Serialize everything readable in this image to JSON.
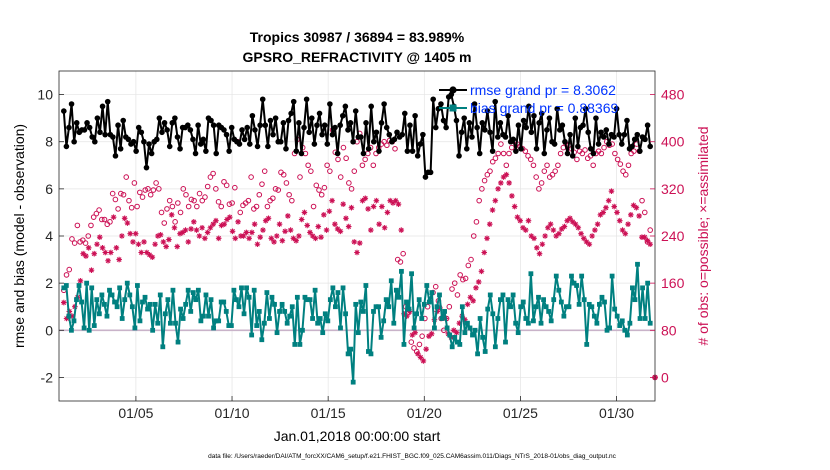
{
  "chart_data": {
    "type": "line",
    "title": "Tropics 30987 / 36894 = 83.989%",
    "subtitle": "GPSRO_REFRACTIVITY @ 1405 m",
    "xlabel": "Jan.01,2018 00:00:00 start",
    "ylabel_left": "rmse and bias (model - observation)",
    "ylabel_right": "# of obs: o=possible; ×=assimilated",
    "footer": "data file: /Users/raeder/DAI/ATM_forcXX/CAM6_setup/f.e21.FHIST_BGC.f09_025.CAM6assim.011/Diags_NTrS_2018-01/obs_diag_output.nc",
    "x_range": [
      1,
      32
    ],
    "y_left_range": [
      -3.0,
      11.0
    ],
    "y_right_range": [
      -40,
      520
    ],
    "x_ticks": [
      {
        "value": 5,
        "label": "01/05"
      },
      {
        "value": 10,
        "label": "01/10"
      },
      {
        "value": 15,
        "label": "01/15"
      },
      {
        "value": 20,
        "label": "01/20"
      },
      {
        "value": 25,
        "label": "01/25"
      },
      {
        "value": 30,
        "label": "01/30"
      }
    ],
    "y_left_ticks": [
      -2,
      0,
      2,
      4,
      6,
      8,
      10
    ],
    "y_right_ticks": [
      0,
      80,
      160,
      240,
      320,
      400,
      480
    ],
    "legend": [
      {
        "name": "rmse grand pr = 8.3062",
        "color": "#000000"
      },
      {
        "name": "bias grand pr = 0.88369",
        "color": "#008080"
      }
    ],
    "legend_placement": "top-right",
    "colors": {
      "rmse": "#000000",
      "bias": "#008080",
      "counts": "#cc1155",
      "zero_line": "#c9b3c9",
      "legend_text": "#0033ff",
      "right_axis": "#cc1155"
    },
    "series": [
      {
        "name": "rmse",
        "values": [
          9.3,
          7.8,
          8.6,
          9.6,
          8.0,
          8.8,
          8.4,
          8.5,
          8.5,
          8.8,
          8.6,
          8.2,
          8.0,
          9.0,
          8.4,
          9.5,
          8.3,
          9.7,
          8.3,
          8.2,
          7.4,
          8.7,
          7.7,
          8.9,
          8.2,
          8.1,
          7.9,
          8.0,
          7.6,
          8.6,
          8.4,
          8.0,
          6.9,
          7.9,
          7.5,
          8.0,
          8.1,
          9.0,
          8.4,
          8.8,
          8.5,
          7.8,
          8.8,
          9.0,
          8.2,
          7.7,
          8.6,
          8.6,
          8.7,
          8.5,
          8.1,
          7.5,
          8.7,
          7.9,
          8.1,
          7.6,
          9.0,
          8.9,
          8.7,
          7.5,
          8.7,
          8.6,
          8.5,
          8.3,
          7.6,
          8.6,
          8.1,
          8.0,
          7.9,
          8.5,
          8.1,
          8.6,
          7.9,
          9.1,
          8.5,
          7.8,
          8.7,
          9.8,
          8.7,
          7.8,
          8.9,
          8.3,
          9.0,
          8.0,
          8.0,
          8.8,
          7.7,
          8.9,
          9.2,
          9.7,
          7.6,
          8.8,
          7.5,
          8.6,
          9.8,
          8.4,
          9.0,
          7.9,
          8.7,
          9.2,
          8.3,
          8.7,
          7.9,
          9.6,
          8.3,
          8.6,
          7.5,
          8.7,
          9.1,
          9.5,
          8.5,
          8.8,
          8.0,
          9.3,
          8.2,
          8.2,
          7.5,
          8.8,
          7.7,
          9.5,
          8.0,
          8.4,
          7.6,
          8.8,
          9.6,
          8.6,
          8.3,
          8.0,
          8.1,
          8.4,
          8.2,
          8.3,
          9.2,
          7.6,
          8.7,
          7.6,
          9.1,
          7.4,
          7.9,
          8.3,
          6.5,
          6.7,
          6.7,
          9.8,
          8.6,
          9.4,
          9.6,
          8.9,
          8.6,
          9.9,
          10.0,
          9.5,
          8.9,
          7.4,
          8.4,
          9.0,
          7.7,
          8.8,
          8.2,
          9.6,
          8.6,
          7.5,
          8.8,
          8.5,
          9.3,
          8.4,
          7.6,
          9.7,
          8.2,
          8.8,
          8.3,
          8.2,
          9.1,
          8.0,
          8.1,
          7.6,
          8.7,
          7.7,
          8.9,
          8.6,
          9.5,
          8.4,
          9.1,
          7.7,
          8.8,
          9.2,
          7.5,
          8.5,
          9.0,
          8.0,
          7.9,
          9.4,
          8.5,
          8.7,
          8.0,
          7.5,
          8.3,
          7.4,
          9.0,
          7.8,
          8.6,
          8.7,
          9.4,
          8.4,
          7.7,
          7.5,
          9.0,
          7.9,
          8.4,
          8.2,
          8.5,
          7.9,
          8.3,
          8.2,
          9.4,
          8.3,
          7.9,
          8.3,
          8.9,
          7.7,
          7.8,
          8.1,
          8.3,
          7.6,
          8.2,
          8.1,
          8.7,
          7.8
        ]
      },
      {
        "name": "bias",
        "values": [
          1.8,
          1.9,
          0.6,
          0.0,
          0.4,
          1.3,
          1.9,
          1.2,
          0.1,
          2.0,
          0.0,
          1.8,
          0.2,
          1.3,
          0.7,
          1.5,
          1.1,
          0.6,
          1.7,
          1.5,
          1.2,
          1.0,
          1.8,
          0.5,
          1.3,
          2.0,
          1.5,
          1.0,
          0.1,
          1.9,
          0.4,
          1.2,
          1.4,
          0.9,
          1.1,
          0.0,
          1.1,
          0.3,
          1.5,
          -0.7,
          0.7,
          1.3,
          0.3,
          1.7,
          0.3,
          -0.5,
          0.9,
          0.5,
          1.1,
          1.7,
          0.8,
          1.6,
          1.3,
          1.7,
          0.4,
          0.6,
          1.5,
          0.6,
          1.3,
          0.1,
          0.4,
          0.4,
          1.2,
          1.2,
          0.8,
          0.2,
          0.2,
          1.7,
          1.3,
          1.0,
          1.8,
          0.7,
          1.8,
          1.4,
          -0.2,
          1.7,
          0.2,
          0.8,
          -0.4,
          0.3,
          1.6,
          0.5,
          1.4,
          1.1,
          -0.1,
          0.8,
          1.1,
          0.8,
          0.3,
          0.6,
          1.0,
          -0.6,
          1.4,
          -0.6,
          0.0,
          1.4,
          1.3,
          1.3,
          0.5,
          1.7,
          0.3,
          0.5,
          -0.1,
          0.7,
          0.4,
          1.3,
          1.8,
          1.0,
          1.6,
          0.1,
          1.8,
          0.7,
          -1.0,
          -0.8,
          -2.2,
          1.1,
          -0.1,
          1.2,
          0.8,
          1.9,
          -0.9,
          -1.0,
          0.8,
          1.0,
          1.0,
          -0.3,
          0.4,
          1.3,
          1.0,
          2.1,
          0.3,
          1.7,
          1.4,
          2.5,
          -0.6,
          1.2,
          0.9,
          2.4,
          0.1,
          0.7,
          1.3,
          0.5,
          1.1,
          1.9,
          1.2,
          1.6,
          0.1,
          1.0,
          1.5,
          0.5,
          0.8,
          0.1,
          -0.2,
          -0.7,
          -0.3,
          -0.5,
          -0.6,
          1.0,
          -0.1,
          0.3,
          0.1,
          -0.2,
          0.0,
          -1.0,
          0.5,
          -0.3,
          -0.9,
          0.9,
          1.5,
          0.7,
          -0.7,
          0.5,
          1.3,
          1.5,
          -0.5,
          1.3,
          1.0,
          1.5,
          0.3,
          -0.1,
          1.0,
          1.2,
          0.5,
          0.3,
          2.4,
          0.4,
          1.0,
          1.4,
          0.3,
          1.3,
          1.0,
          0.8,
          0.4,
          1.3,
          2.3,
          1.7,
          1.2,
          0.6,
          1.0,
          1.0,
          2.3,
          2.0,
          1.9,
          1.1,
          2.3,
          1.3,
          -0.6,
          1.1,
          1.0,
          0.6,
          0.3,
          1.1,
          1.4,
          1.2,
          0.0,
          0.1,
          2.3,
          0.9,
          0.6,
          0.2,
          0.4,
          0.0,
          -0.2,
          0.3,
          1.8,
          1.3,
          2.8,
          0.5,
          1.8,
          0.5,
          2.0,
          0.3
        ]
      },
      {
        "name": "possible",
        "values": [
          148,
          174,
          183,
          235,
          228,
          258,
          230,
          233,
          228,
          240,
          258,
          272,
          278,
          284,
          268,
          268,
          260,
          264,
          312,
          302,
          286,
          312,
          310,
          340,
          300,
          288,
          330,
          290,
          314,
          306,
          318,
          320,
          310,
          318,
          330,
          320,
          280,
          262,
          286,
          300,
          290,
          264,
          296,
          280,
          320,
          310,
          290,
          302,
          300,
          290,
          312,
          300,
          306,
          324,
          340,
          346,
          320,
          298,
          290,
          332,
          326,
          294,
          296,
          322,
          400,
          280,
          292,
          296,
          300,
          340,
          286,
          290,
          310,
          328,
          350,
          290,
          300,
          304,
          320,
          318,
          348,
          344,
          330,
          310,
          300,
          380,
          404,
          340,
          390,
          380,
          360,
          350,
          290,
          326,
          318,
          310,
          322,
          360,
          350,
          420,
          382,
          370,
          340,
          390,
          372,
          330,
          320,
          350,
          400,
          414,
          360,
          370,
          380,
          390,
          360,
          380,
          390,
          396,
          400,
          394,
          402,
          400,
          388,
          200,
          196,
          210,
          120,
          110,
          60,
          50,
          44,
          56,
          70,
          100,
          120,
          130,
          144,
          154,
          130,
          100,
          80,
          100,
          120,
          150,
          160,
          140,
          174,
          166,
          168,
          190,
          200,
          240,
          264,
          300,
          320,
          334,
          344,
          350,
          366,
          372,
          380,
          396,
          380,
          360,
          380,
          390,
          400,
          396,
          392,
          388,
          384,
          376,
          370,
          360,
          340,
          320,
          330,
          350,
          360,
          340,
          344,
          350,
          360,
          380,
          390,
          396,
          394,
          388,
          382,
          370,
          384,
          380,
          386,
          372,
          376,
          360,
          380,
          384,
          380,
          390,
          400,
          394,
          396,
          380,
          370,
          362,
          350,
          344,
          360,
          380,
          384,
          396,
          384,
          300,
          280,
          230,
          250
        ]
      },
      {
        "name": "assimilated",
        "values": [
          127,
          100,
          112,
          104,
          120,
          136,
          164,
          210,
          206,
          220,
          182,
          210,
          226,
          238,
          220,
          212,
          198,
          212,
          272,
          220,
          200,
          240,
          270,
          262,
          244,
          230,
          244,
          226,
          212,
          230,
          212,
          208,
          204,
          226,
          240,
          242,
          230,
          222,
          234,
          276,
          254,
          222,
          244,
          246,
          250,
          230,
          252,
          264,
          250,
          240,
          254,
          236,
          246,
          254,
          260,
          266,
          236,
          258,
          260,
          268,
          272,
          248,
          236,
          264,
          240,
          240,
          246,
          236,
          246,
          260,
          226,
          238,
          250,
          266,
          270,
          236,
          230,
          240,
          260,
          232,
          248,
          274,
          250,
          236,
          232,
          240,
          268,
          280,
          258,
          246,
          240,
          236,
          256,
          238,
          276,
          250,
          282,
          300,
          260,
          252,
          248,
          294,
          270,
          256,
          288,
          230,
          212,
          228,
          300,
          304,
          286,
          250,
          290,
          300,
          260,
          290,
          254,
          280,
          300,
          296,
          300,
          294,
          250,
          108,
          104,
          112,
          72,
          76,
          40,
          34,
          28,
          48,
          70,
          74,
          98,
          112,
          118,
          102,
          100,
          74,
          68,
          80,
          76,
          92,
          104,
          98,
          124,
          136,
          130,
          152,
          162,
          180,
          212,
          236,
          260,
          284,
          300,
          320,
          330,
          340,
          344,
          330,
          308,
          290,
          272,
          266,
          254,
          250,
          266,
          240,
          236,
          220,
          210,
          226,
          240,
          254,
          260,
          250,
          240,
          244,
          252,
          256,
          266,
          270,
          264,
          260,
          254,
          244,
          236,
          230,
          226,
          240,
          250,
          260,
          276,
          280,
          288,
          300,
          316,
          290,
          280,
          266,
          250,
          244,
          260,
          276,
          292,
          288,
          274,
          238,
          238,
          232,
          226
        ]
      }
    ],
    "marks": [
      {
        "series": "possible",
        "x": 32.0,
        "value": 0
      },
      {
        "series": "assimilated",
        "x": 32.0,
        "value": 0
      }
    ]
  }
}
